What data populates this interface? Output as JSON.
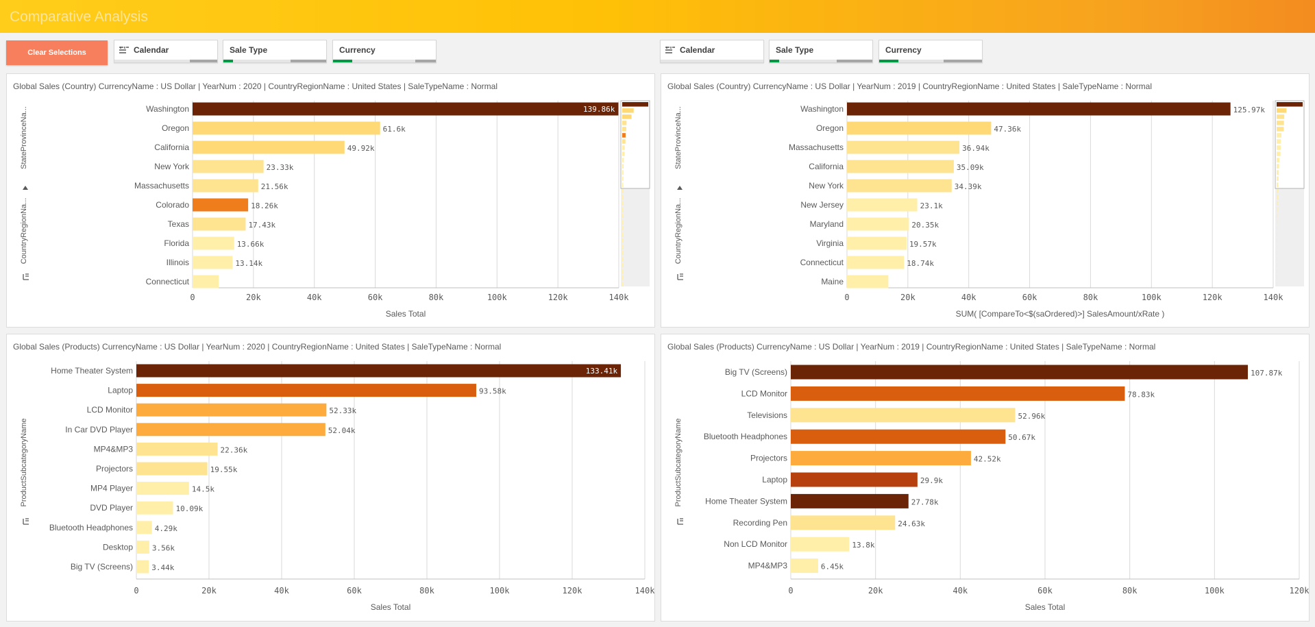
{
  "app_title": "Comparative Analysis",
  "toolbar": {
    "clear_label": "Clear Selections",
    "left_filters": [
      {
        "label": "Calendar",
        "icon": "filter-list-icon"
      },
      {
        "label": "Sale Type"
      },
      {
        "label": "Currency"
      }
    ],
    "right_filters": [
      {
        "label": "Calendar",
        "icon": "filter-list-icon"
      },
      {
        "label": "Sale Type"
      },
      {
        "label": "Currency"
      }
    ]
  },
  "colors": {
    "bar_darkest": "#6b2406",
    "bar_dark": "#b7410e",
    "bar_orange": "#d95f0e",
    "bar_medium": "#ef7d1b",
    "bar_light_orange": "#fdab3d",
    "bar_light": "#fed976",
    "bar_lighter": "#fee391",
    "bar_lightest": "#ffefa8",
    "title_start": "#ffcd1a",
    "title_end": "#f48c1f",
    "clear_button": "#f77f5d"
  },
  "chart_data": [
    {
      "id": "country_2020",
      "title": "Global Sales (Country) CurrencyName : US Dollar | YearNum : 2020 | CountryRegionName : United States | SaleTypeName : Normal",
      "type": "bar",
      "orientation": "horizontal",
      "dim_labels": [
        "StateProvinceNa...",
        "CountryRegionNa..."
      ],
      "categories": [
        "Washington",
        "Oregon",
        "California",
        "New York",
        "Massachusetts",
        "Colorado",
        "Texas",
        "Florida",
        "Illinois",
        "Connecticut"
      ],
      "values": [
        139.86,
        61.6,
        49.92,
        23.33,
        21.56,
        18.26,
        17.43,
        13.66,
        13.14,
        8.6
      ],
      "value_labels": [
        "139.86k",
        "61.6k",
        "49.92k",
        "23.33k",
        "21.56k",
        "18.26k",
        "17.43k",
        "13.66k",
        "13.14k",
        ""
      ],
      "colors": [
        "#6b2406",
        "#fed976",
        "#fed976",
        "#fee391",
        "#fee391",
        "#ef7d1b",
        "#fee391",
        "#ffefa8",
        "#ffefa8",
        "#ffefa8"
      ],
      "xlabel": "Sales Total",
      "xticks": [
        "0",
        "20k",
        "40k",
        "60k",
        "80k",
        "100k",
        "120k",
        "140k"
      ],
      "xlim": [
        0,
        140
      ],
      "scrollbar": true,
      "grid": true
    },
    {
      "id": "country_2019",
      "title": "Global Sales (Country) CurrencyName : US Dollar | YearNum : 2019 | CountryRegionName : United States | SaleTypeName : Normal",
      "type": "bar",
      "orientation": "horizontal",
      "dim_labels": [
        "StateProvinceNa...",
        "CountryRegionNa..."
      ],
      "categories": [
        "Washington",
        "Oregon",
        "Massachusetts",
        "California",
        "New York",
        "New Jersey",
        "Maryland",
        "Virginia",
        "Connecticut",
        "Maine"
      ],
      "values": [
        125.97,
        47.36,
        36.94,
        35.09,
        34.39,
        23.1,
        20.35,
        19.57,
        18.74,
        13.6
      ],
      "value_labels": [
        "125.97k",
        "47.36k",
        "36.94k",
        "35.09k",
        "34.39k",
        "23.1k",
        "20.35k",
        "19.57k",
        "18.74k",
        ""
      ],
      "colors": [
        "#6b2406",
        "#fed976",
        "#fee391",
        "#fee391",
        "#fee391",
        "#ffefa8",
        "#ffefa8",
        "#ffefa8",
        "#ffefa8",
        "#ffefa8"
      ],
      "xlabel": "SUM( [CompareTo<$(saOrdered)>] SalesAmount/xRate )",
      "xticks": [
        "0",
        "20k",
        "40k",
        "60k",
        "80k",
        "100k",
        "120k",
        "140k"
      ],
      "xlim": [
        0,
        140
      ],
      "scrollbar": true,
      "grid": true
    },
    {
      "id": "products_2020",
      "title": "Global Sales (Products) CurrencyName : US Dollar | YearNum : 2020 | CountryRegionName : United States | SaleTypeName : Normal",
      "type": "bar",
      "orientation": "horizontal",
      "dim_labels": [
        "ProductSubcategoryName"
      ],
      "categories": [
        "Home Theater System",
        "Laptop",
        "LCD Monitor",
        "In Car DVD Player",
        "MP4&MP3",
        "Projectors",
        "MP4 Player",
        "DVD Player",
        "Bluetooth Headphones",
        "Desktop",
        "Big TV (Screens)"
      ],
      "values": [
        133.41,
        93.58,
        52.33,
        52.04,
        22.36,
        19.55,
        14.5,
        10.09,
        4.29,
        3.56,
        3.44
      ],
      "value_labels": [
        "133.41k",
        "93.58k",
        "52.33k",
        "52.04k",
        "22.36k",
        "19.55k",
        "14.5k",
        "10.09k",
        "4.29k",
        "3.56k",
        "3.44k"
      ],
      "colors": [
        "#6b2406",
        "#d95f0e",
        "#fdab3d",
        "#fdab3d",
        "#fee391",
        "#fee391",
        "#ffefa8",
        "#ffefa8",
        "#ffefa8",
        "#ffefa8",
        "#ffefa8"
      ],
      "xlabel": "Sales Total",
      "xticks": [
        "0",
        "20k",
        "40k",
        "60k",
        "80k",
        "100k",
        "120k",
        "140k"
      ],
      "xlim": [
        0,
        140
      ],
      "scrollbar": false,
      "grid": true
    },
    {
      "id": "products_2019",
      "title": "Global Sales (Products) CurrencyName : US Dollar | YearNum : 2019 | CountryRegionName : United States | SaleTypeName : Normal",
      "type": "bar",
      "orientation": "horizontal",
      "dim_labels": [
        "ProductSubcategoryName"
      ],
      "categories": [
        "Big TV (Screens)",
        "LCD Monitor",
        "Televisions",
        "Bluetooth Headphones",
        "Projectors",
        "Laptop",
        "Home Theater System",
        "Recording Pen",
        "Non LCD Monitor",
        "MP4&MP3"
      ],
      "values": [
        107.87,
        78.83,
        52.96,
        50.67,
        42.52,
        29.9,
        27.78,
        24.63,
        13.8,
        6.45
      ],
      "value_labels": [
        "107.87k",
        "78.83k",
        "52.96k",
        "50.67k",
        "42.52k",
        "29.9k",
        "27.78k",
        "24.63k",
        "13.8k",
        "6.45k"
      ],
      "colors": [
        "#6b2406",
        "#d95f0e",
        "#fee391",
        "#d95f0e",
        "#fdab3d",
        "#b7410e",
        "#6b2406",
        "#fee391",
        "#ffefa8",
        "#ffefa8"
      ],
      "xlabel": "Sales Total",
      "xticks": [
        "0",
        "20k",
        "40k",
        "60k",
        "80k",
        "100k",
        "120k"
      ],
      "xlim": [
        0,
        120
      ],
      "scrollbar": false,
      "grid": true
    }
  ]
}
